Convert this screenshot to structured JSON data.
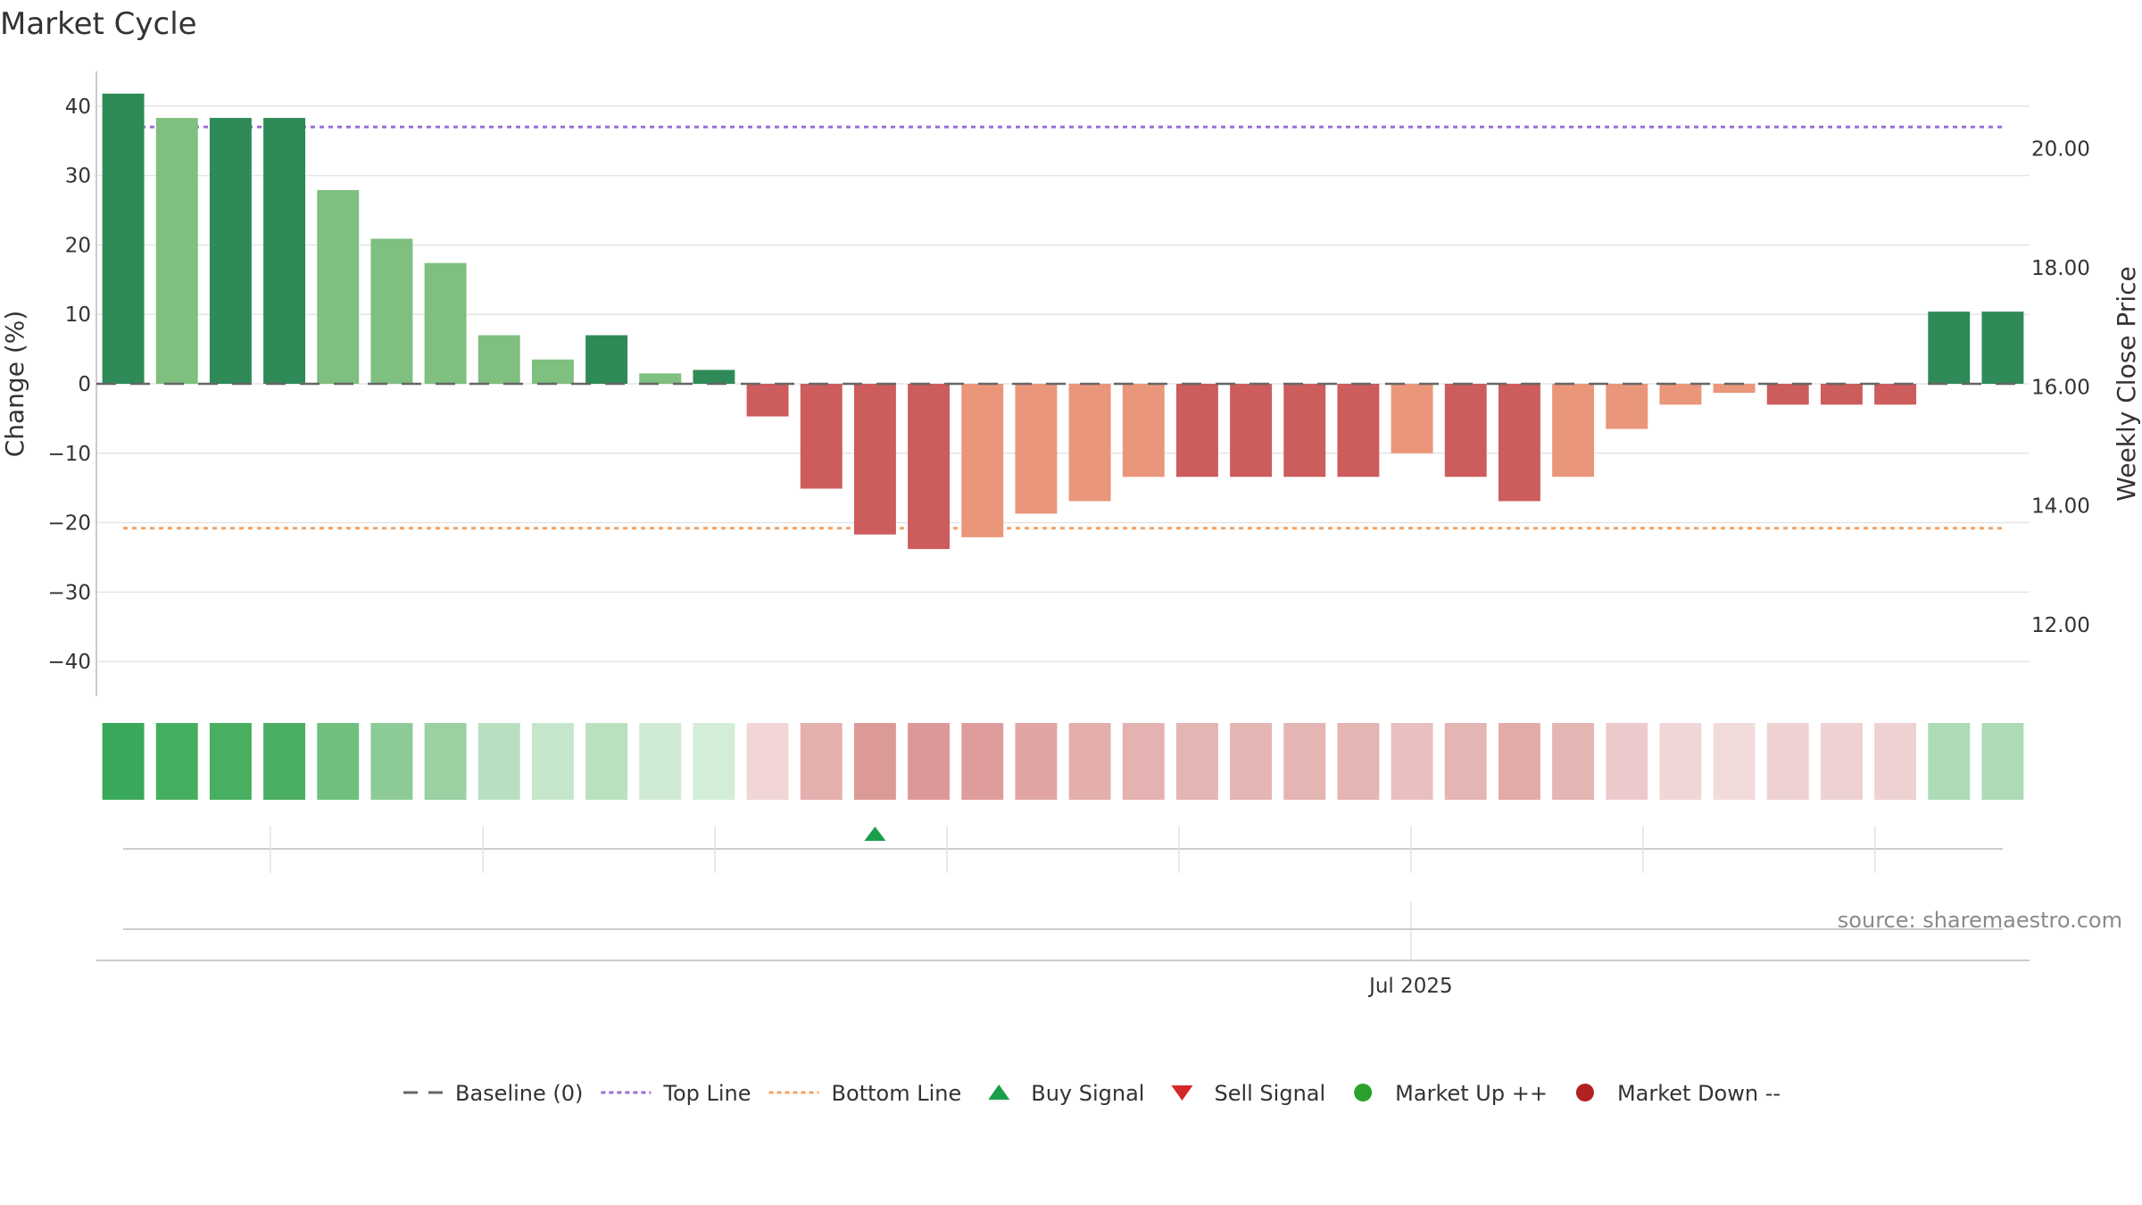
{
  "chart_data": {
    "type": "bar",
    "title": "Market Cycle",
    "ylabel": "Change (%)",
    "y2label": "Weekly Close Price",
    "ylim": [
      -45,
      45
    ],
    "yticks": [
      40,
      30,
      20,
      10,
      0,
      -10,
      -20,
      -30,
      -40
    ],
    "y2lim": [
      10.8,
      21.3
    ],
    "y2ticks": [
      {
        "value": 20,
        "label": "20.00"
      },
      {
        "value": 18,
        "label": "18.00"
      },
      {
        "value": 16,
        "label": "16.00"
      },
      {
        "value": 14,
        "label": "14.00"
      },
      {
        "value": 12,
        "label": "12.00"
      }
    ],
    "x_tick_label": "Jul 2025",
    "values": [
      41.8,
      38.3,
      38.3,
      38.3,
      27.9,
      20.9,
      17.4,
      7.0,
      3.5,
      7.0,
      1.5,
      2.0,
      -4.7,
      -15.1,
      -21.7,
      -23.8,
      -22.1,
      -18.7,
      -16.9,
      -13.4,
      -13.4,
      -13.4,
      -13.4,
      -13.4,
      -10.0,
      -13.4,
      -16.9,
      -13.4,
      -6.5,
      -3.0,
      -1.3,
      -3.0,
      -3.0,
      -3.0,
      10.4,
      10.4
    ],
    "bar_colors": [
      "#2e8b57",
      "#7fbf7f",
      "#2e8b57",
      "#2e8b57",
      "#7fbf7f",
      "#7fbf7f",
      "#7fbf7f",
      "#7fbf7f",
      "#7fbf7f",
      "#2e8b57",
      "#7fbf7f",
      "#2e8b57",
      "#cd5c5c",
      "#cd5c5c",
      "#cd5c5c",
      "#cd5c5c",
      "#e9967a",
      "#e9967a",
      "#e9967a",
      "#e9967a",
      "#cd5c5c",
      "#cd5c5c",
      "#cd5c5c",
      "#cd5c5c",
      "#e9967a",
      "#cd5c5c",
      "#cd5c5c",
      "#e9967a",
      "#e9967a",
      "#e9967a",
      "#e9967a",
      "#cd5c5c",
      "#cd5c5c",
      "#cd5c5c",
      "#2e8b57",
      "#2e8b57"
    ],
    "heat_colors": [
      "#39a85a",
      "#46ae5f",
      "#48ae60",
      "#4aaf62",
      "#6fbf7f",
      "#8ccb97",
      "#99d1a3",
      "#b8e0c0",
      "#c6e6cb",
      "#b9e1c0",
      "#d0ebd4",
      "#d4edd8",
      "#f2d5d5",
      "#e4b0ae",
      "#dc9a96",
      "#dc9898",
      "#de9c9c",
      "#e0a4a4",
      "#e3aeac",
      "#e4b2b0",
      "#e5b5b3",
      "#e5b5b3",
      "#e5b5b3",
      "#e5b5b3",
      "#e9c0bf",
      "#e5b5b3",
      "#e2aaa8",
      "#e5b5b3",
      "#eccacb",
      "#f0d7d7",
      "#f2dcdb",
      "#eed1d1",
      "#eed1d1",
      "#eed1d1",
      "#acdbb5",
      "#acdbb5"
    ],
    "top_line": 37.0,
    "bottom_line": -20.8,
    "buy_signal_index": 14,
    "colors": {
      "baseline": "#666666",
      "top_line": "#9b6dd6",
      "bottom_line": "#f4a261",
      "buy": "#1a9e49",
      "sell": "#d62728",
      "market_up": "#2ca02c",
      "market_down": "#b22222",
      "grid": "#e6e6e6"
    },
    "source": "source: sharemaestro.com",
    "legend": {
      "position": "bottom-center",
      "items": [
        {
          "key": "baseline",
          "label": "Baseline (0)",
          "symbol": "dashed-line"
        },
        {
          "key": "top_line",
          "label": "Top Line",
          "symbol": "dotted-line"
        },
        {
          "key": "bottom_line",
          "label": "Bottom Line",
          "symbol": "dotted-line"
        },
        {
          "key": "buy",
          "label": "Buy Signal",
          "symbol": "triangle-up"
        },
        {
          "key": "sell",
          "label": "Sell Signal",
          "symbol": "triangle-down"
        },
        {
          "key": "market_up",
          "label": "Market Up ++",
          "symbol": "circle"
        },
        {
          "key": "market_down",
          "label": "Market Down --",
          "symbol": "circle"
        }
      ]
    }
  }
}
